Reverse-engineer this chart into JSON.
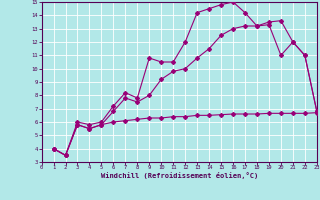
{
  "xlabel": "Windchill (Refroidissement éolien,°C)",
  "background_color": "#b2e8e8",
  "grid_color": "#aadddd",
  "line_color": "#990077",
  "xlim": [
    0,
    23
  ],
  "ylim": [
    3,
    15
  ],
  "xticks": [
    0,
    1,
    2,
    3,
    4,
    5,
    6,
    7,
    8,
    9,
    10,
    11,
    12,
    13,
    14,
    15,
    16,
    17,
    18,
    19,
    20,
    21,
    22,
    23
  ],
  "yticks": [
    3,
    4,
    5,
    6,
    7,
    8,
    9,
    10,
    11,
    12,
    13,
    14,
    15
  ],
  "line1_x": [
    1,
    2,
    3,
    4,
    5,
    6,
    7,
    8,
    9,
    10,
    11,
    12,
    13,
    14,
    15,
    16,
    17,
    18,
    19,
    20,
    21,
    22,
    23
  ],
  "line1_y": [
    4.0,
    3.5,
    6.0,
    5.8,
    6.0,
    7.2,
    8.2,
    7.8,
    10.8,
    10.5,
    10.5,
    12.0,
    14.2,
    14.5,
    14.8,
    15.0,
    14.2,
    13.2,
    13.3,
    11.0,
    12.0,
    11.0,
    6.8
  ],
  "line2_x": [
    1,
    2,
    3,
    4,
    5,
    6,
    7,
    8,
    9,
    10,
    11,
    12,
    13,
    14,
    15,
    16,
    17,
    18,
    19,
    20,
    21,
    22,
    23
  ],
  "line2_y": [
    4.0,
    3.5,
    5.8,
    5.5,
    5.8,
    6.8,
    7.8,
    7.5,
    8.0,
    9.2,
    9.8,
    10.0,
    10.8,
    11.5,
    12.5,
    13.0,
    13.2,
    13.2,
    13.5,
    13.6,
    12.0,
    11.0,
    6.8
  ],
  "line3_x": [
    1,
    2,
    3,
    4,
    5,
    6,
    7,
    8,
    9,
    10,
    11,
    12,
    13,
    14,
    15,
    16,
    17,
    18,
    19,
    20,
    21,
    22,
    23
  ],
  "line3_y": [
    4.0,
    3.5,
    5.8,
    5.5,
    5.8,
    6.0,
    6.1,
    6.2,
    6.3,
    6.3,
    6.4,
    6.4,
    6.5,
    6.5,
    6.55,
    6.6,
    6.6,
    6.6,
    6.65,
    6.65,
    6.65,
    6.65,
    6.7
  ]
}
